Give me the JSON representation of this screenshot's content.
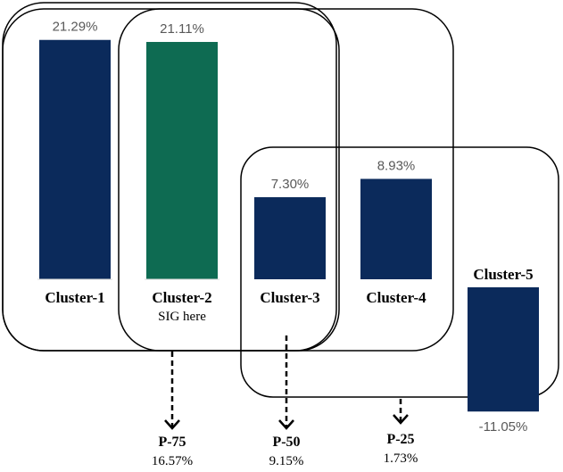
{
  "chart_data": {
    "type": "bar",
    "categories": [
      "Cluster-1",
      "Cluster-2",
      "Cluster-3",
      "Cluster-4",
      "Cluster-5"
    ],
    "values": [
      21.29,
      21.11,
      7.3,
      8.93,
      -11.05
    ],
    "value_labels": [
      "21.29%",
      "21.11%",
      "7.30%",
      "8.93%",
      "-11.05%"
    ],
    "colors": [
      "#0b2a5b",
      "#0e6b52",
      "#0b2a5b",
      "#0b2a5b",
      "#0b2a5b"
    ],
    "annotations": [
      {
        "category": "Cluster-2",
        "text": "SIG here"
      }
    ],
    "percentiles": [
      {
        "label": "P-75",
        "value": "16.57%"
      },
      {
        "label": "P-50",
        "value": "9.15%"
      },
      {
        "label": "P-25",
        "value": "1.73%"
      }
    ],
    "groupings": [
      [
        "Cluster-1",
        "Cluster-2",
        "Cluster-3"
      ],
      [
        "Cluster-2",
        "Cluster-3"
      ],
      [
        "Cluster-1",
        "Cluster-2",
        "Cluster-3",
        "Cluster-4"
      ],
      [
        "Cluster-3",
        "Cluster-4",
        "Cluster-5"
      ]
    ],
    "title": "",
    "xlabel": "",
    "ylabel": "",
    "grid": false,
    "legend": "none"
  }
}
